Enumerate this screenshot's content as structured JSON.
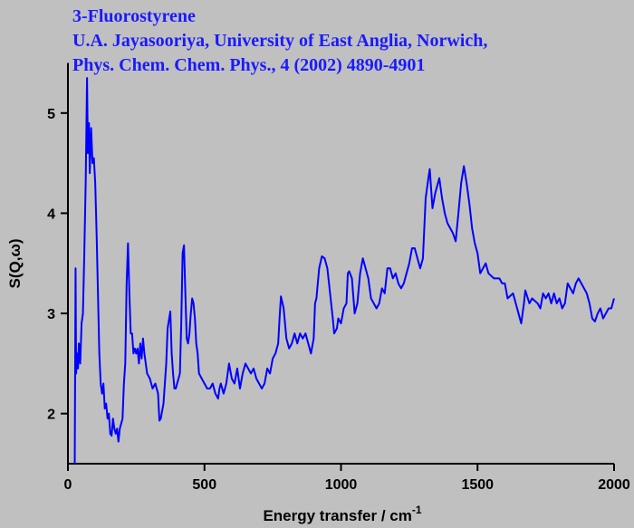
{
  "chart_data": {
    "type": "line",
    "title": [
      "3-Fluorostyrene",
      "U.A. Jayasooriya, University of East Anglia, Norwich,",
      "Phys. Chem. Chem. Phys., 4 (2002) 4890-4901"
    ],
    "xlabel": "Energy transfer / cm",
    "xlabel_superscript": "-1",
    "ylabel": "S(Q,ω)",
    "xlim": [
      0,
      2000
    ],
    "ylim": [
      1.5,
      5.5
    ],
    "xticks": [
      0,
      500,
      1000,
      1500,
      2000
    ],
    "yticks": [
      2,
      3,
      4,
      5
    ],
    "color": "#0000ff",
    "x": [
      25,
      28,
      30,
      33,
      37,
      40,
      45,
      50,
      55,
      60,
      65,
      70,
      73,
      77,
      80,
      85,
      90,
      95,
      100,
      105,
      110,
      115,
      120,
      125,
      130,
      135,
      140,
      145,
      150,
      155,
      160,
      165,
      170,
      175,
      180,
      185,
      190,
      195,
      200,
      205,
      210,
      215,
      220,
      225,
      230,
      235,
      240,
      245,
      250,
      255,
      260,
      265,
      270,
      275,
      280,
      285,
      290,
      300,
      310,
      320,
      330,
      335,
      340,
      350,
      360,
      365,
      375,
      380,
      385,
      390,
      395,
      400,
      410,
      415,
      420,
      425,
      430,
      435,
      440,
      445,
      450,
      455,
      460,
      465,
      470,
      475,
      480,
      490,
      500,
      510,
      520,
      530,
      540,
      550,
      555,
      560,
      570,
      580,
      590,
      600,
      610,
      620,
      630,
      640,
      650,
      660,
      670,
      680,
      690,
      700,
      710,
      720,
      730,
      740,
      750,
      760,
      770,
      775,
      780,
      790,
      800,
      810,
      820,
      830,
      840,
      850,
      860,
      870,
      880,
      890,
      900,
      905,
      910,
      920,
      930,
      940,
      950,
      960,
      970,
      975,
      985,
      990,
      1000,
      1010,
      1020,
      1025,
      1030,
      1040,
      1050,
      1060,
      1070,
      1080,
      1090,
      1100,
      1110,
      1120,
      1130,
      1140,
      1150,
      1160,
      1170,
      1180,
      1190,
      1200,
      1210,
      1220,
      1230,
      1240,
      1250,
      1260,
      1270,
      1280,
      1290,
      1300,
      1310,
      1320,
      1325,
      1335,
      1345,
      1355,
      1360,
      1370,
      1380,
      1390,
      1400,
      1410,
      1420,
      1430,
      1440,
      1450,
      1460,
      1470,
      1480,
      1490,
      1500,
      1510,
      1520,
      1530,
      1540,
      1560,
      1580,
      1590,
      1600,
      1610,
      1630,
      1640,
      1650,
      1660,
      1670,
      1675,
      1690,
      1700,
      1720,
      1730,
      1740,
      1750,
      1760,
      1770,
      1780,
      1790,
      1800,
      1810,
      1820,
      1830,
      1840,
      1850,
      1860,
      1870,
      1880,
      1890,
      1900,
      1910,
      1920,
      1930,
      1940,
      1950,
      1960,
      1970,
      1980,
      1990,
      2000
    ],
    "values": [
      1.5,
      3.45,
      2.4,
      2.6,
      2.45,
      2.7,
      2.5,
      2.9,
      3.0,
      3.6,
      4.3,
      5.35,
      4.6,
      4.9,
      4.4,
      4.85,
      4.5,
      4.55,
      4.3,
      3.8,
      3.2,
      2.6,
      2.3,
      2.2,
      2.3,
      2.05,
      2.1,
      1.95,
      2.0,
      1.8,
      1.78,
      1.95,
      1.85,
      1.8,
      1.85,
      1.72,
      1.85,
      1.9,
      1.95,
      2.3,
      2.5,
      3.3,
      3.7,
      3.2,
      2.8,
      2.8,
      2.6,
      2.65,
      2.6,
      2.65,
      2.5,
      2.7,
      2.55,
      2.75,
      2.6,
      2.5,
      2.4,
      2.35,
      2.25,
      2.3,
      2.2,
      1.93,
      1.95,
      2.1,
      2.5,
      2.85,
      3.02,
      2.6,
      2.4,
      2.25,
      2.25,
      2.3,
      2.4,
      2.9,
      3.6,
      3.68,
      3.2,
      2.75,
      2.7,
      2.8,
      3.0,
      3.15,
      3.1,
      2.95,
      2.7,
      2.6,
      2.4,
      2.35,
      2.3,
      2.25,
      2.25,
      2.3,
      2.2,
      2.15,
      2.25,
      2.3,
      2.2,
      2.3,
      2.5,
      2.35,
      2.3,
      2.45,
      2.25,
      2.4,
      2.5,
      2.45,
      2.4,
      2.45,
      2.35,
      2.3,
      2.25,
      2.3,
      2.45,
      2.4,
      2.55,
      2.6,
      2.7,
      2.95,
      3.17,
      3.05,
      2.75,
      2.65,
      2.7,
      2.8,
      2.7,
      2.8,
      2.75,
      2.8,
      2.7,
      2.6,
      2.75,
      3.1,
      3.15,
      3.45,
      3.57,
      3.55,
      3.45,
      3.2,
      2.95,
      2.8,
      2.85,
      2.95,
      2.9,
      3.05,
      3.1,
      3.4,
      3.42,
      3.35,
      3.0,
      3.1,
      3.4,
      3.55,
      3.45,
      3.35,
      3.15,
      3.1,
      3.05,
      3.1,
      3.25,
      3.2,
      3.45,
      3.45,
      3.35,
      3.4,
      3.3,
      3.25,
      3.3,
      3.4,
      3.5,
      3.65,
      3.65,
      3.55,
      3.45,
      3.55,
      4.15,
      4.35,
      4.44,
      4.05,
      4.2,
      4.3,
      4.35,
      4.15,
      4.0,
      3.9,
      3.85,
      3.8,
      3.72,
      4.0,
      4.3,
      4.47,
      4.3,
      4.1,
      3.85,
      3.7,
      3.6,
      3.4,
      3.45,
      3.5,
      3.4,
      3.35,
      3.35,
      3.3,
      3.3,
      3.15,
      3.2,
      3.1,
      3.0,
      2.9,
      3.1,
      3.23,
      3.1,
      3.15,
      3.1,
      3.05,
      3.2,
      3.15,
      3.2,
      3.1,
      3.2,
      3.1,
      3.15,
      3.05,
      3.1,
      3.3,
      3.25,
      3.2,
      3.3,
      3.35,
      3.3,
      3.25,
      3.2,
      3.1,
      2.95,
      2.92,
      3.0,
      3.05,
      2.95,
      3.0,
      3.05,
      3.05,
      3.15
    ]
  }
}
